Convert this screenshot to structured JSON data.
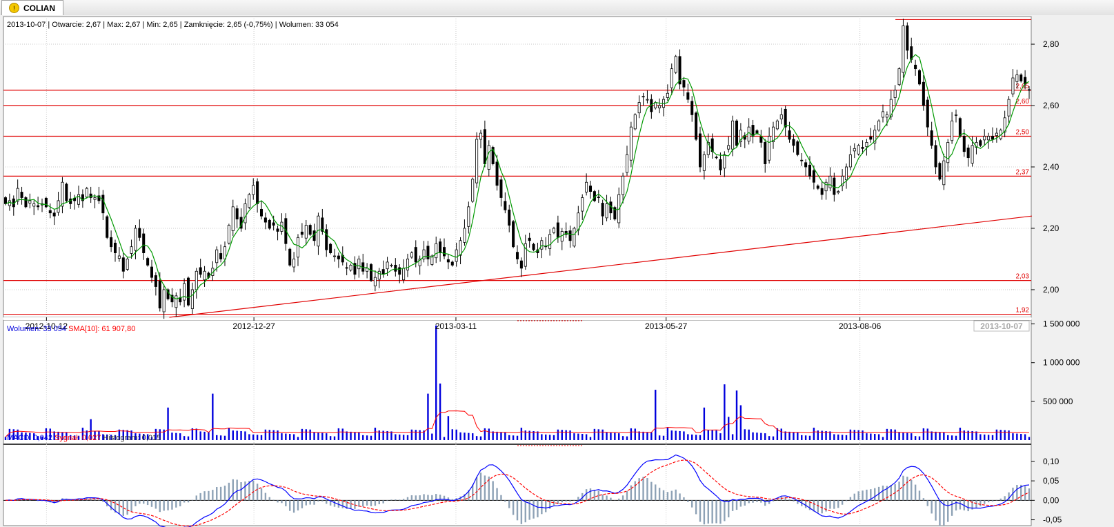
{
  "tab": {
    "title": "COLIAN",
    "icon": "warning-icon"
  },
  "price_info": {
    "date": "2013-10-07",
    "open": "Otwarcie: 2,67",
    "max": "Max: 2,67",
    "min": "Min: 2,65",
    "close": "Zamknięcie: 2,65 (-0,75%)",
    "volume": "Wolumen: 33 054"
  },
  "volume_info": {
    "volume": "Wolumen: 33 054",
    "sma": "SMA[10]: 61 907,80"
  },
  "macd_info": {
    "macd": "MACD: 0,042",
    "signal": "Sygnał: 0,027",
    "histogram": "Histogram: 0,015"
  },
  "colors": {
    "up": "#ffffff",
    "down": "#000000",
    "sma": "#009900",
    "levels": "#e00000",
    "volume": "#0000dd",
    "vol_sma": "#ff0000",
    "macd": "#0000ff",
    "signal": "#ff0000",
    "histogram": "#8ea2b6"
  },
  "chart_data": [
    {
      "type": "candlestick",
      "panel": "price",
      "x_ticks": [
        "2012-10-12",
        "2012-12-27",
        "2013-03-11",
        "2013-05-27",
        "2013-08-06"
      ],
      "x_current": "2013-10-07",
      "y_ticks": [
        "2,00",
        "2,20",
        "2,40",
        "2,60",
        "2,80"
      ],
      "ylim": [
        1.91,
        2.89
      ],
      "overlay": "sma",
      "horizontal_levels": [
        {
          "value": 1.92,
          "label": "1,92"
        },
        {
          "value": 2.03,
          "label": "2,03"
        },
        {
          "value": 2.37,
          "label": "2,37"
        },
        {
          "value": 2.5,
          "label": "2,50"
        },
        {
          "value": 2.6,
          "label": "2,60"
        },
        {
          "value": 2.65,
          "label": "2,65"
        }
      ],
      "trendline": {
        "from": {
          "x": "2012-11-26",
          "y": 1.91
        },
        "to": {
          "x": "2013-10-08",
          "y": 2.24
        }
      },
      "resistance": {
        "from": "2013-08-19",
        "value": 2.88
      },
      "closes": [
        2.28,
        2.29,
        2.27,
        2.33,
        2.3,
        2.27,
        2.29,
        2.28,
        2.27,
        2.28,
        2.27,
        2.25,
        2.24,
        2.29,
        2.35,
        2.29,
        2.28,
        2.29,
        2.31,
        2.29,
        2.33,
        2.3,
        2.3,
        2.29,
        2.25,
        2.17,
        2.14,
        2.12,
        2.11,
        2.06,
        2.1,
        2.14,
        2.2,
        2.17,
        2.12,
        2.08,
        2.04,
        2.01,
        1.94,
        2.0,
        1.97,
        1.96,
        1.98,
        1.96,
        2.02,
        1.95,
        2.0,
        2.06,
        2.05,
        2.06,
        2.04,
        2.07,
        2.13,
        2.1,
        2.14,
        2.21,
        2.27,
        2.23,
        2.2,
        2.28,
        2.31,
        2.34,
        2.28,
        2.24,
        2.22,
        2.2,
        2.21,
        2.19,
        2.22,
        2.15,
        2.08,
        2.1,
        2.17,
        2.18,
        2.21,
        2.18,
        2.16,
        2.24,
        2.19,
        2.13,
        2.12,
        2.11,
        2.1,
        2.09,
        2.07,
        2.08,
        2.05,
        2.1,
        2.06,
        2.07,
        2.03,
        2.04,
        2.06,
        2.05,
        2.09,
        2.08,
        2.06,
        2.05,
        2.07,
        2.1,
        2.12,
        2.09,
        2.1,
        2.13,
        2.1,
        2.11,
        2.15,
        2.12,
        2.11,
        2.09,
        2.08,
        2.13,
        2.16,
        2.2,
        2.27,
        2.36,
        2.49,
        2.51,
        2.41,
        2.47,
        2.41,
        2.34,
        2.3,
        2.26,
        2.21,
        2.14,
        2.1,
        2.07,
        2.15,
        2.16,
        2.13,
        2.12,
        2.16,
        2.14,
        2.18,
        2.2,
        2.17,
        2.19,
        2.18,
        2.16,
        2.2,
        2.25,
        2.3,
        2.35,
        2.32,
        2.29,
        2.3,
        2.24,
        2.28,
        2.25,
        2.23,
        2.31,
        2.37,
        2.44,
        2.53,
        2.57,
        2.61,
        2.63,
        2.62,
        2.58,
        2.61,
        2.6,
        2.62,
        2.64,
        2.72,
        2.76,
        2.67,
        2.66,
        2.62,
        2.57,
        2.49,
        2.4,
        2.44,
        2.48,
        2.45,
        2.43,
        2.39,
        2.44,
        2.47,
        2.55,
        2.47,
        2.52,
        2.49,
        2.53,
        2.5,
        2.51,
        2.48,
        2.41,
        2.5,
        2.53,
        2.55,
        2.57,
        2.53,
        2.49,
        2.47,
        2.44,
        2.42,
        2.4,
        2.37,
        2.35,
        2.33,
        2.31,
        2.35,
        2.37,
        2.31,
        2.32,
        2.37,
        2.4,
        2.44,
        2.46,
        2.47,
        2.46,
        2.48,
        2.49,
        2.52,
        2.55,
        2.58,
        2.57,
        2.62,
        2.65,
        2.72,
        2.86,
        2.78,
        2.75,
        2.72,
        2.67,
        2.6,
        2.53,
        2.47,
        2.4,
        2.36,
        2.42,
        2.48,
        2.55,
        2.57,
        2.5,
        2.45,
        2.43,
        2.47,
        2.48,
        2.47,
        2.5,
        2.5,
        2.49,
        2.51,
        2.52,
        2.56,
        2.62,
        2.69,
        2.7,
        2.68,
        2.67,
        2.65
      ]
    },
    {
      "type": "bar",
      "panel": "volume",
      "y_ticks": [
        "500 000",
        "1 000 000",
        "1 500 000"
      ],
      "ylim": [
        0,
        1550000
      ],
      "overlay": "sma10",
      "spikes": [
        {
          "index": 21,
          "value": 270000
        },
        {
          "index": 40,
          "value": 420000
        },
        {
          "index": 51,
          "value": 600000
        },
        {
          "index": 104,
          "value": 600000
        },
        {
          "index": 106,
          "value": 1480000
        },
        {
          "index": 107,
          "value": 730000
        },
        {
          "index": 109,
          "value": 310000
        },
        {
          "index": 160,
          "value": 650000
        },
        {
          "index": 172,
          "value": 420000
        },
        {
          "index": 177,
          "value": 720000
        },
        {
          "index": 178,
          "value": 300000
        },
        {
          "index": 180,
          "value": 640000
        },
        {
          "index": 181,
          "value": 450000
        }
      ]
    },
    {
      "type": "line",
      "panel": "macd",
      "y_ticks": [
        "-0,05",
        "0,00",
        "0,05",
        "0,10"
      ],
      "ylim": [
        -0.065,
        0.13
      ],
      "series": [
        {
          "name": "MACD"
        },
        {
          "name": "Sygnał"
        },
        {
          "name": "Histogram"
        }
      ]
    }
  ]
}
